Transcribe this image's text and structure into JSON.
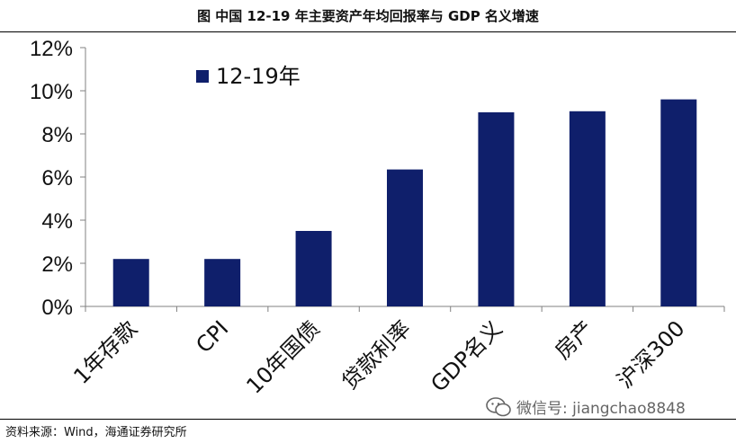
{
  "chart_data": {
    "type": "bar",
    "title": "图  中国 12-19 年主要资产年均回报率与 GDP 名义增速",
    "categories": [
      "1年存款",
      "CPI",
      "10年国债",
      "贷款利率",
      "GDP名义",
      "房产",
      "沪深300"
    ],
    "series": [
      {
        "name": "12-19年",
        "values": [
          2.2,
          2.2,
          3.5,
          6.35,
          9.0,
          9.05,
          9.6
        ]
      }
    ],
    "ylim": [
      0,
      12
    ],
    "yticks": [
      0,
      2,
      4,
      6,
      8,
      10,
      12
    ],
    "ytick_labels": [
      "0%",
      "2%",
      "4%",
      "6%",
      "8%",
      "10%",
      "12%"
    ],
    "xlabel": "",
    "ylabel": "",
    "legend_position": "top-left",
    "grid": false,
    "colors": {
      "bar": "#0f1f6b",
      "axis": "#808080",
      "text": "#111111"
    }
  },
  "footer": {
    "source": "资料来源：Wind，海通证券研究所",
    "watermark": "微信号: jiangchao8848"
  }
}
